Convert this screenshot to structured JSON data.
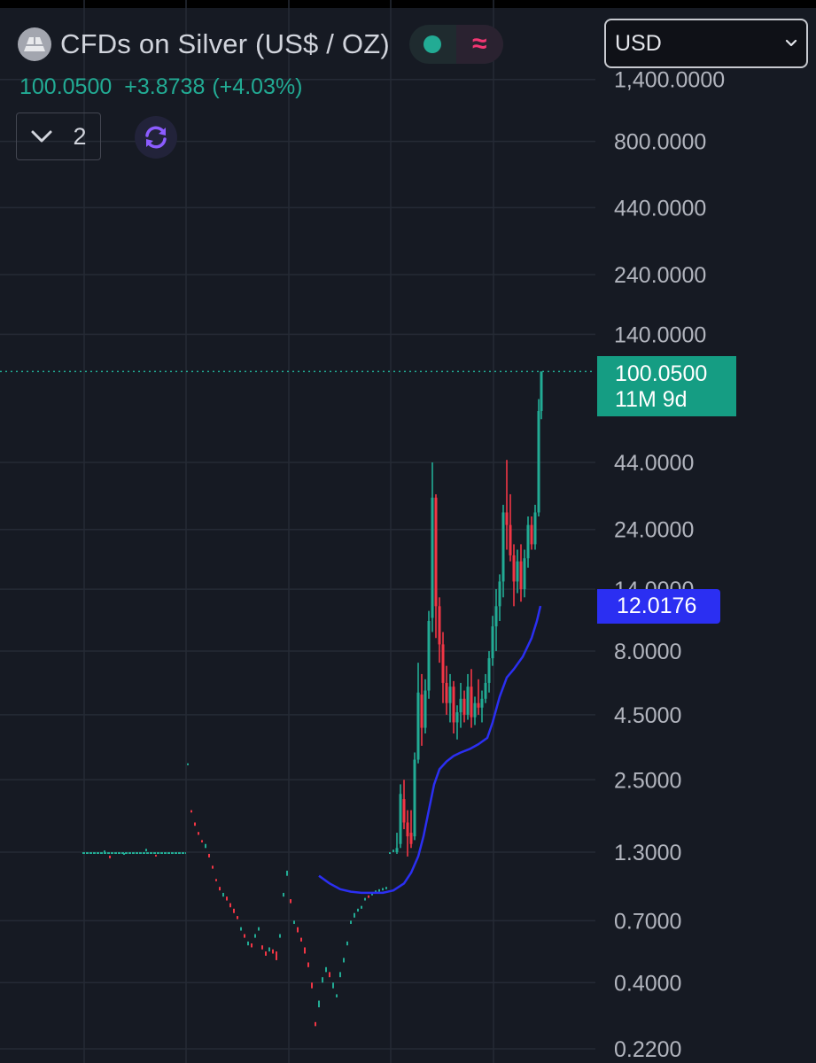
{
  "header": {
    "symbol_title": "CFDs on Silver (US$ / OZ)",
    "last_price": "100.0500",
    "change": "+3.8738",
    "change_pct": "(+4.03%)",
    "indicator_count": "2",
    "icons": [
      "silver-logo-icon",
      "market-open-dot-icon",
      "wave-icon",
      "chevron-down-icon",
      "sync-icon"
    ]
  },
  "currency": {
    "selected": "USD"
  },
  "price_label": {
    "price": "100.0500",
    "countdown": "11M 9d"
  },
  "ma_label": {
    "value": "12.0176"
  },
  "colors": {
    "background": "#161a23",
    "grid": "#252a35",
    "up": "#22ab94",
    "down": "#f23645",
    "ma_line": "#2b2ff2",
    "price_label_bg": "#159d83",
    "ma_label_bg": "#2b2ff2",
    "price_line": "#22ab94",
    "axis_text": "#b2b5be"
  },
  "chart_data": {
    "type": "candlestick",
    "scale": "log",
    "y_ticks": [
      "1,400.0000",
      "800.0000",
      "440.0000",
      "240.0000",
      "140.0000",
      "44.0000",
      "24.0000",
      "14.0000",
      "8.0000",
      "4.5000",
      "2.5000",
      "1.3000",
      "0.7000",
      "0.4000",
      "0.2200"
    ],
    "last_price": 100.05,
    "ma_value": 12.0176,
    "grid": true,
    "sparse_ticks": [
      [
        118,
        1.32,
        1.3,
        "up"
      ],
      [
        124,
        1.26,
        1.23,
        "down"
      ],
      [
        140,
        1.29,
        1.27,
        "up"
      ],
      [
        165,
        1.34,
        1.31,
        "up"
      ],
      [
        176,
        1.27,
        1.25,
        "down"
      ],
      [
        212,
        2.9,
        2.9,
        "up"
      ],
      [
        216,
        1.9,
        1.86,
        "down"
      ],
      [
        220,
        1.7,
        1.65,
        "down"
      ],
      [
        224,
        1.56,
        1.52,
        "down"
      ],
      [
        228,
        1.45,
        1.42,
        "down"
      ],
      [
        232,
        1.4,
        1.35,
        "up"
      ],
      [
        236,
        1.28,
        1.24,
        "down"
      ],
      [
        240,
        1.15,
        1.12,
        "down"
      ],
      [
        244,
        1.02,
        1.0,
        "down"
      ],
      [
        248,
        0.95,
        0.92,
        "down"
      ],
      [
        252,
        0.9,
        0.87,
        "up"
      ],
      [
        256,
        0.87,
        0.84,
        "down"
      ],
      [
        260,
        0.82,
        0.79,
        "down"
      ],
      [
        264,
        0.78,
        0.75,
        "down"
      ],
      [
        268,
        0.73,
        0.71,
        "down"
      ],
      [
        272,
        0.66,
        0.64,
        "up"
      ],
      [
        276,
        0.62,
        0.6,
        "down"
      ],
      [
        280,
        0.58,
        0.56,
        "up"
      ],
      [
        284,
        0.57,
        0.55,
        "down"
      ],
      [
        288,
        0.62,
        0.6,
        "up"
      ],
      [
        292,
        0.66,
        0.64,
        "up"
      ],
      [
        296,
        0.56,
        0.54,
        "down"
      ],
      [
        300,
        0.53,
        0.51,
        "down"
      ],
      [
        304,
        0.55,
        0.53,
        "up"
      ],
      [
        308,
        0.54,
        0.52,
        "down"
      ],
      [
        312,
        0.53,
        0.49,
        "down"
      ],
      [
        316,
        0.62,
        0.6,
        "up"
      ],
      [
        320,
        0.9,
        0.87,
        "up"
      ],
      [
        324,
        1.1,
        1.05,
        "up"
      ],
      [
        328,
        0.85,
        0.82,
        "down"
      ],
      [
        332,
        0.7,
        0.68,
        "up"
      ],
      [
        336,
        0.66,
        0.63,
        "down"
      ],
      [
        340,
        0.6,
        0.58,
        "down"
      ],
      [
        344,
        0.55,
        0.52,
        "down"
      ],
      [
        348,
        0.48,
        0.46,
        "down"
      ],
      [
        352,
        0.4,
        0.38,
        "down"
      ],
      [
        356,
        0.28,
        0.27,
        "down"
      ],
      [
        360,
        0.34,
        0.32,
        "up"
      ],
      [
        364,
        0.42,
        0.4,
        "up"
      ],
      [
        368,
        0.46,
        0.44,
        "up"
      ],
      [
        372,
        0.44,
        0.42,
        "down"
      ],
      [
        376,
        0.4,
        0.38,
        "up"
      ],
      [
        380,
        0.36,
        0.35,
        "up"
      ],
      [
        384,
        0.44,
        0.42,
        "up"
      ],
      [
        388,
        0.5,
        0.48,
        "up"
      ],
      [
        392,
        0.58,
        0.56,
        "up"
      ],
      [
        396,
        0.7,
        0.68,
        "up"
      ],
      [
        400,
        0.75,
        0.72,
        "up"
      ],
      [
        404,
        0.78,
        0.76,
        "up"
      ],
      [
        408,
        0.8,
        0.78,
        "up"
      ],
      [
        412,
        0.86,
        0.84,
        "up"
      ],
      [
        416,
        0.88,
        0.86,
        "down"
      ],
      [
        420,
        0.9,
        0.88,
        "up"
      ],
      [
        424,
        0.92,
        0.9,
        "up"
      ],
      [
        428,
        0.93,
        0.91,
        "up"
      ],
      [
        432,
        0.94,
        0.92,
        "up"
      ],
      [
        436,
        0.95,
        0.93,
        "up"
      ],
      [
        440,
        1.3,
        1.28,
        "up"
      ],
      [
        444,
        1.33,
        1.3,
        "up"
      ]
    ],
    "ohlc": [
      [
        448,
        1.3,
        1.55,
        1.28,
        1.35
      ],
      [
        452,
        1.4,
        2.4,
        1.35,
        2.2
      ],
      [
        456,
        2.1,
        2.5,
        1.6,
        1.7
      ],
      [
        460,
        1.7,
        1.9,
        1.25,
        1.5
      ],
      [
        464,
        1.55,
        1.9,
        1.35,
        1.4
      ],
      [
        468,
        1.5,
        3.2,
        1.45,
        3.0
      ],
      [
        472,
        3.0,
        7.2,
        2.9,
        5.5
      ],
      [
        476,
        5.4,
        6.5,
        3.4,
        4.0
      ],
      [
        480,
        4.0,
        6.2,
        3.8,
        5.6
      ],
      [
        484,
        5.6,
        11.5,
        5.2,
        10.5
      ],
      [
        488,
        10.8,
        44.0,
        9.5,
        32.0
      ],
      [
        492,
        32.0,
        33.0,
        9.0,
        12.0
      ],
      [
        496,
        12.0,
        13.0,
        7.2,
        8.5
      ],
      [
        500,
        8.5,
        9.5,
        5.0,
        6.0
      ],
      [
        504,
        6.0,
        7.0,
        4.5,
        5.0
      ],
      [
        508,
        5.0,
        6.5,
        4.2,
        5.8
      ],
      [
        512,
        5.8,
        6.1,
        3.8,
        4.2
      ],
      [
        516,
        4.2,
        4.9,
        3.6,
        4.6
      ],
      [
        520,
        4.6,
        6.0,
        4.0,
        5.2
      ],
      [
        524,
        5.2,
        5.6,
        4.2,
        4.5
      ],
      [
        528,
        4.5,
        6.5,
        4.3,
        5.8
      ],
      [
        532,
        5.8,
        6.8,
        4.0,
        4.4
      ],
      [
        536,
        4.4,
        5.3,
        4.1,
        5.0
      ],
      [
        540,
        5.0,
        6.2,
        4.5,
        4.8
      ],
      [
        544,
        4.8,
        5.6,
        4.2,
        5.2
      ],
      [
        548,
        5.2,
        6.5,
        5.0,
        6.0
      ],
      [
        552,
        6.0,
        8.0,
        5.5,
        7.5
      ],
      [
        556,
        7.5,
        11.0,
        7.0,
        10.0
      ],
      [
        560,
        10.0,
        14.0,
        8.0,
        12.0
      ],
      [
        564,
        12.0,
        16.0,
        10.5,
        15.0
      ],
      [
        568,
        15.0,
        30.0,
        13.0,
        28.0
      ],
      [
        572,
        28.0,
        45.0,
        20.0,
        25.0
      ],
      [
        576,
        25.0,
        33.0,
        18.0,
        19.0
      ],
      [
        580,
        19.0,
        21.0,
        12.0,
        15.0
      ],
      [
        584,
        15.0,
        20.0,
        13.5,
        18.0
      ],
      [
        588,
        18.0,
        21.0,
        12.5,
        14.0
      ],
      [
        592,
        14.0,
        20.0,
        13.0,
        18.5
      ],
      [
        596,
        18.5,
        27.0,
        17.0,
        25.0
      ],
      [
        600,
        25.0,
        27.0,
        20.0,
        21.0
      ],
      [
        604,
        21.0,
        30.0,
        20.0,
        28.0
      ],
      [
        608,
        28.0,
        78.0,
        27.0,
        70.0
      ],
      [
        611,
        70.0,
        100.05,
        65.0,
        100.05
      ]
    ],
    "ma_series": [
      [
        360,
        1.05
      ],
      [
        372,
        0.98
      ],
      [
        384,
        0.93
      ],
      [
        396,
        0.91
      ],
      [
        408,
        0.9
      ],
      [
        420,
        0.9
      ],
      [
        432,
        0.9
      ],
      [
        444,
        0.92
      ],
      [
        456,
        0.98
      ],
      [
        464,
        1.08
      ],
      [
        472,
        1.25
      ],
      [
        478,
        1.5
      ],
      [
        484,
        1.9
      ],
      [
        490,
        2.4
      ],
      [
        496,
        2.75
      ],
      [
        504,
        2.95
      ],
      [
        512,
        3.1
      ],
      [
        520,
        3.2
      ],
      [
        530,
        3.3
      ],
      [
        540,
        3.45
      ],
      [
        550,
        3.65
      ],
      [
        556,
        4.2
      ],
      [
        564,
        5.3
      ],
      [
        572,
        6.3
      ],
      [
        580,
        6.8
      ],
      [
        590,
        7.6
      ],
      [
        600,
        9.0
      ],
      [
        606,
        10.5
      ],
      [
        610,
        12.0176
      ]
    ]
  }
}
